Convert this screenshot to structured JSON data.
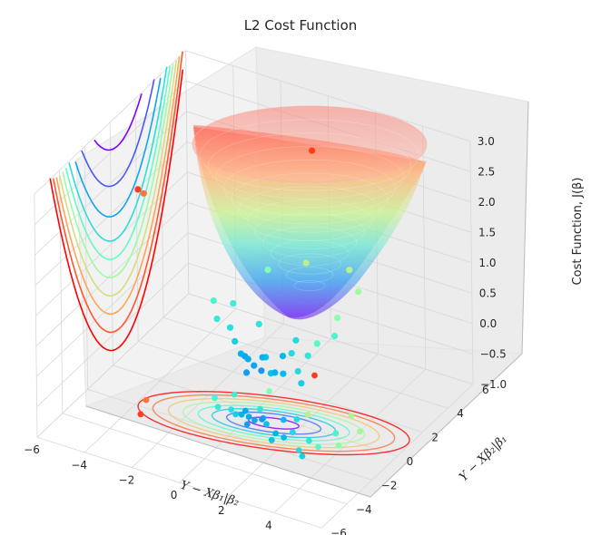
{
  "chart_data": {
    "type": "scatter",
    "title": "L2 Cost Function",
    "xlabel": "Y − Xβ₁|β₂",
    "ylabel": "Y − Xβ₂|β₁",
    "zlabel": "Cost Function, J(β)",
    "xlim": [
      -6,
      6
    ],
    "ylim": [
      -6,
      6
    ],
    "zlim": [
      -1.0,
      3.0
    ],
    "x_ticks": [
      "−6",
      "−4",
      "−2",
      "0",
      "2",
      "4",
      "6"
    ],
    "y_ticks": [
      "−6",
      "−4",
      "−2",
      "0",
      "2",
      "4",
      "6"
    ],
    "z_ticks": [
      "−1.0",
      "−0.5",
      "0.0",
      "0.5",
      "1.0",
      "1.5",
      "2.0",
      "2.5",
      "3.0"
    ],
    "colormap": "rainbow",
    "surface": "paraboloid bowl J = (x² + y²)/12, partially transparent",
    "projections": [
      "contour on floor plane",
      "contour on side wall"
    ],
    "series": [
      {
        "values": [
          {
            "x": -3.8,
            "y": -1.5,
            "z": 2.4
          },
          {
            "x": -3.5,
            "y": -2.5,
            "z": 2.7
          },
          {
            "x": 0.7,
            "y": 3.4,
            "z": 2.7
          },
          {
            "x": 4.0,
            "y": 0.8,
            "z": 1.3
          },
          {
            "x": 3.2,
            "y": 1.6,
            "z": 1.4
          },
          {
            "x": 1.8,
            "y": 0.8,
            "z": 1.5
          },
          {
            "x": 3.8,
            "y": -0.5,
            "z": 1.1
          },
          {
            "x": 3.2,
            "y": -1.0,
            "z": 0.7
          },
          {
            "x": 3.3,
            "y": 0.2,
            "z": 0.6
          },
          {
            "x": 2.7,
            "y": -0.8,
            "z": 0.4
          },
          {
            "x": -0.2,
            "y": 1.5,
            "z": 1.0
          },
          {
            "x": -1.7,
            "y": 0.0,
            "z": 0.6
          },
          {
            "x": -1.2,
            "y": 0.6,
            "z": 0.5
          },
          {
            "x": -1.3,
            "y": -0.5,
            "z": 0.45
          },
          {
            "x": -0.8,
            "y": -0.4,
            "z": 0.35
          },
          {
            "x": 0.1,
            "y": 0.2,
            "z": 0.4
          },
          {
            "x": 1.6,
            "y": 0.3,
            "z": 0.3
          },
          {
            "x": 1.9,
            "y": -0.6,
            "z": 0.3
          },
          {
            "x": 2.7,
            "y": -1.6,
            "z": 0.3
          },
          {
            "x": 3.0,
            "y": -1.9,
            "z": 0.2
          },
          {
            "x": 1.5,
            "y": -1.5,
            "z": 0.1
          },
          {
            "x": 1.8,
            "y": -1.1,
            "z": 0.05
          },
          {
            "x": -0.5,
            "y": -0.6,
            "z": 0.2
          },
          {
            "x": 0.8,
            "y": -0.6,
            "z": 0.1
          },
          {
            "x": 1.2,
            "y": 0.0,
            "z": 0.05
          },
          {
            "x": -0.3,
            "y": -0.5,
            "z": 0.0
          },
          {
            "x": 0.5,
            "y": -0.3,
            "z": 0.0
          },
          {
            "x": 1.4,
            "y": -1.0,
            "z": 0.0
          },
          {
            "x": 0.0,
            "y": -0.5,
            "z": -0.05
          },
          {
            "x": 0.3,
            "y": -0.6,
            "z": -0.1
          },
          {
            "x": 0.2,
            "y": -1.0,
            "z": -0.15
          },
          {
            "x": 0.5,
            "y": -0.4,
            "z": -0.2
          },
          {
            "x": -0.3,
            "y": -0.2,
            "z": -0.1
          }
        ]
      }
    ]
  }
}
